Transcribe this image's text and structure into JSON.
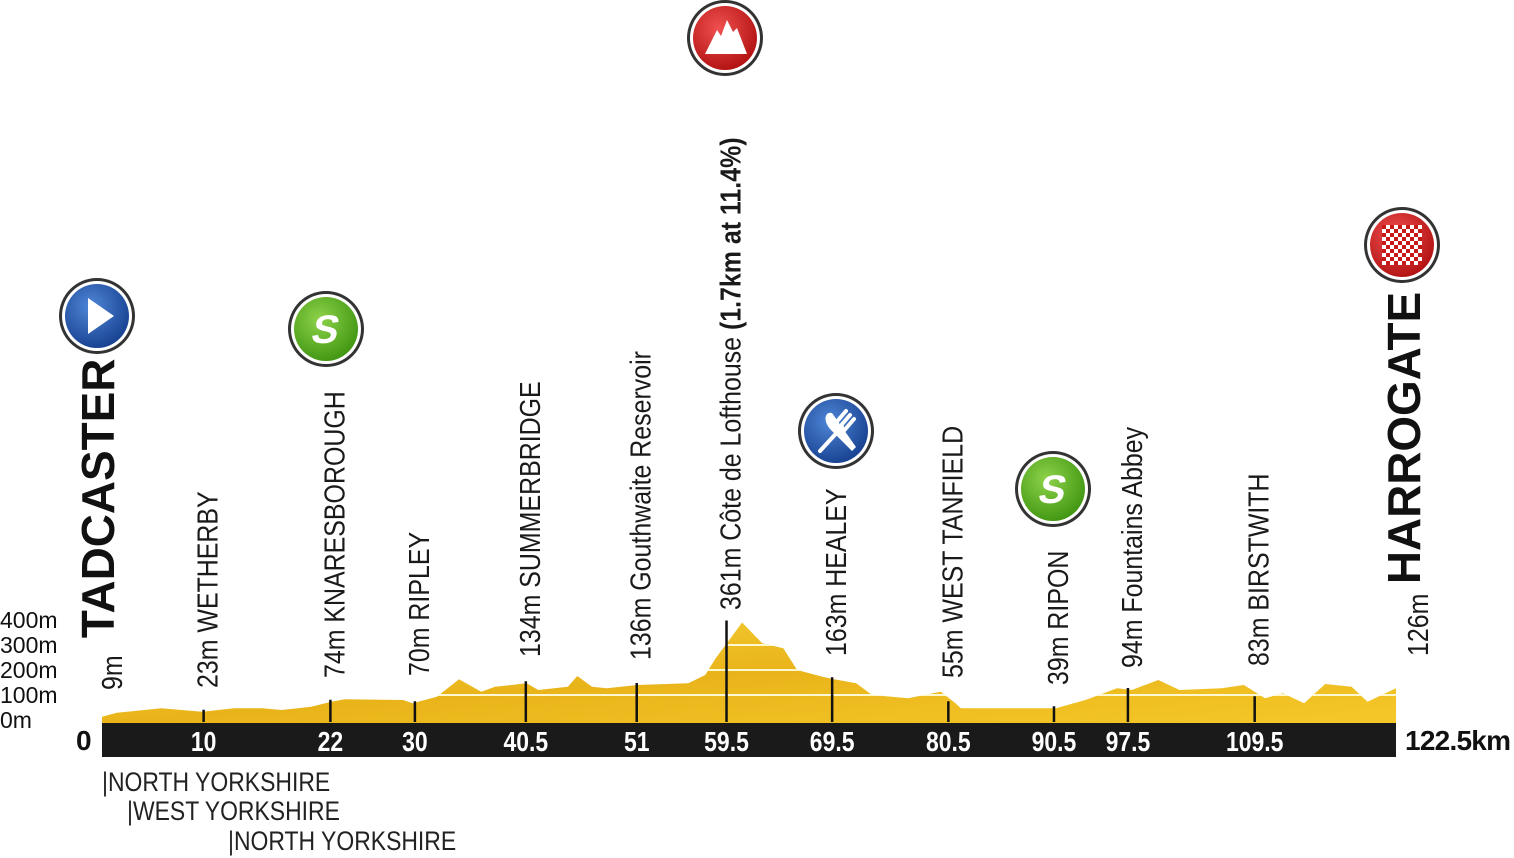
{
  "chart_data": {
    "type": "area",
    "xlabel": "",
    "ylabel": "",
    "x_unit": "km",
    "y_unit": "m",
    "xlim": [
      0,
      122.5
    ],
    "ylim": [
      0,
      400
    ],
    "grid": true,
    "colors": {
      "profile": "#f2c21b",
      "profile_dark": "#d9a514",
      "bar": "#1a1a1a",
      "start": "#1f4fa8",
      "sprint": "#5bb419",
      "kom": "#d41e1e",
      "feed": "#1f4fa8",
      "finish": "#d41e1e"
    },
    "y_ticks": [
      "0m",
      "100m",
      "200m",
      "300m",
      "400m"
    ],
    "y_tick_values": [
      0,
      100,
      200,
      300,
      400
    ],
    "start_label": "0",
    "end_label": "122.5km",
    "km_ticks": [
      {
        "km": 10,
        "label": "10"
      },
      {
        "km": 22,
        "label": "22"
      },
      {
        "km": 30,
        "label": "30"
      },
      {
        "km": 40.5,
        "label": "40.5"
      },
      {
        "km": 51,
        "label": "51"
      },
      {
        "km": 59.5,
        "label": "59.5"
      },
      {
        "km": 69.5,
        "label": "69.5"
      },
      {
        "km": 80.5,
        "label": "80.5"
      },
      {
        "km": 90.5,
        "label": "90.5"
      },
      {
        "km": 97.5,
        "label": "97.5"
      },
      {
        "km": 109.5,
        "label": "109.5"
      }
    ],
    "profile": [
      [
        0,
        13
      ],
      [
        1.4,
        29
      ],
      [
        5.6,
        47
      ],
      [
        9.5,
        33
      ],
      [
        12.5,
        47
      ],
      [
        15.2,
        47
      ],
      [
        17,
        40
      ],
      [
        19.8,
        53
      ],
      [
        21.7,
        73
      ],
      [
        23,
        83
      ],
      [
        28.5,
        80
      ],
      [
        29.4,
        67
      ],
      [
        31.7,
        93
      ],
      [
        33.8,
        163
      ],
      [
        35.9,
        113
      ],
      [
        37.2,
        133
      ],
      [
        40.2,
        147
      ],
      [
        41.3,
        120
      ],
      [
        44.1,
        133
      ],
      [
        45,
        176
      ],
      [
        46.4,
        133
      ],
      [
        47.8,
        127
      ],
      [
        50.7,
        140
      ],
      [
        55.5,
        147
      ],
      [
        57.1,
        180
      ],
      [
        58.1,
        247
      ],
      [
        60.6,
        390
      ],
      [
        62.5,
        307
      ],
      [
        64.5,
        287
      ],
      [
        65.8,
        200
      ],
      [
        68.2,
        173
      ],
      [
        69.3,
        163
      ],
      [
        71.4,
        147
      ],
      [
        72.9,
        100
      ],
      [
        76.3,
        87
      ],
      [
        79.4,
        113
      ],
      [
        80.8,
        67
      ],
      [
        81.3,
        47
      ],
      [
        88.7,
        47
      ],
      [
        90.3,
        47
      ],
      [
        93.1,
        80
      ],
      [
        96.1,
        127
      ],
      [
        97.5,
        120
      ],
      [
        100,
        160
      ],
      [
        102,
        120
      ],
      [
        106,
        127
      ],
      [
        108.1,
        140
      ],
      [
        110.1,
        87
      ],
      [
        111.8,
        107
      ],
      [
        113.8,
        67
      ],
      [
        115.8,
        144
      ],
      [
        118.3,
        133
      ],
      [
        119.8,
        73
      ],
      [
        122.5,
        127
      ]
    ],
    "waypoints": [
      {
        "km": 0,
        "altitude": "9m",
        "name": "TADCASTER",
        "major": true,
        "icon": "start-icon"
      },
      {
        "km": 10,
        "altitude": "23m",
        "name": "WETHERBY"
      },
      {
        "km": 22,
        "altitude": "74m",
        "name": "KNARESBOROUGH",
        "icon": "sprint-icon"
      },
      {
        "km": 30,
        "altitude": "70m",
        "name": "RIPLEY"
      },
      {
        "km": 40.5,
        "altitude": "134m",
        "name": "SUMMERBRIDGE"
      },
      {
        "km": 51,
        "altitude": "136m",
        "name": "Gouthwaite Reservoir"
      },
      {
        "km": 59.5,
        "altitude": "361m",
        "name": "Côte de Lofthouse",
        "detail": "(1.7km at 11.4%)",
        "icon": "kom-mountain-icon"
      },
      {
        "km": 69.5,
        "altitude": "163m",
        "name": "HEALEY",
        "icon": "feed-zone-icon"
      },
      {
        "km": 80.5,
        "altitude": "55m",
        "name": "WEST TANFIELD"
      },
      {
        "km": 90.5,
        "altitude": "39m",
        "name": "RIPON",
        "icon": "sprint-icon"
      },
      {
        "km": 97.5,
        "altitude": "94m",
        "name": "Fountains Abbey"
      },
      {
        "km": 109.5,
        "altitude": "83m",
        "name": "BIRSTWITH"
      },
      {
        "km": 122.5,
        "altitude": "126m",
        "name": "HARROGATE",
        "major": true,
        "icon": "finish-icon"
      }
    ],
    "regions": [
      "|NORTH YORKSHIRE",
      "|WEST YORKSHIRE",
      "|NORTH YORKSHIRE"
    ],
    "sprint_letter": "S"
  }
}
